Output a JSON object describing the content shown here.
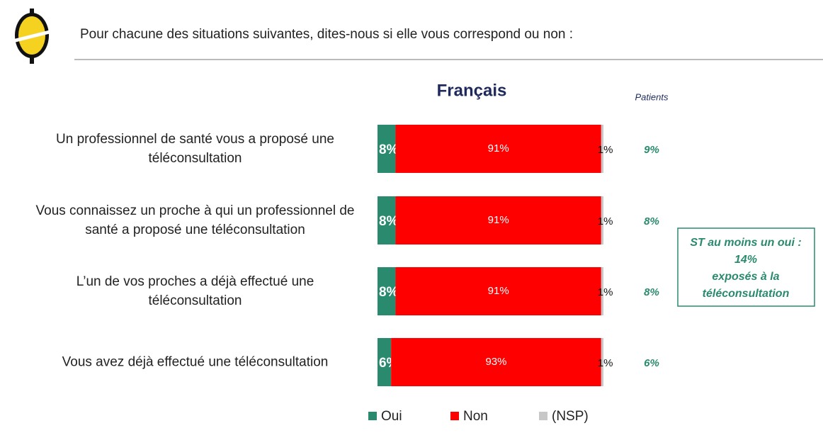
{
  "header": {
    "question": "Pour chacune des situations suivantes, dites-nous si elle vous correspond ou non :"
  },
  "chart_data": {
    "type": "stacked-bar-horizontal",
    "title": "Français",
    "categories": [
      "Un professionnel de santé vous a proposé une téléconsultation",
      "Vous connaissez un proche à qui un professionnel de santé a proposé une téléconsultation",
      "L’un de vos proches a déjà effectué une téléconsultation",
      "Vous avez déjà effectué une téléconsultation"
    ],
    "series": [
      {
        "name": "Oui",
        "color": "#2a8a6e",
        "values": [
          8,
          8,
          8,
          6
        ],
        "value_labels": [
          "8%",
          "8%",
          "8%",
          "6%"
        ]
      },
      {
        "name": "Non",
        "color": "#ff0000",
        "values": [
          91,
          91,
          91,
          93
        ],
        "value_labels": [
          "91%",
          "91%",
          "91%",
          "93%"
        ]
      },
      {
        "name": "(NSP)",
        "color": "#c8c8c8",
        "values": [
          1,
          1,
          1,
          1
        ],
        "value_labels": [
          "1%",
          "1%",
          "1%",
          "1%"
        ]
      }
    ],
    "patients": {
      "title": "Patients",
      "labels": [
        "9%",
        "8%",
        "8%",
        "6%"
      ]
    },
    "note": {
      "lines": [
        "ST au moins un oui :",
        "14%",
        "exposés à la",
        "téléconsultation"
      ]
    }
  }
}
